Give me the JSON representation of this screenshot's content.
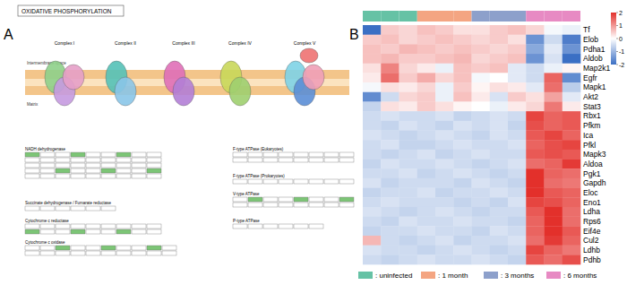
{
  "panel_a": {
    "panel_label": "A",
    "title": "OXIDATIVE PHOSPHORYLATION",
    "complexes": [
      "Complex I",
      "Complex II",
      "Complex III",
      "Complex IV",
      "Complex V"
    ],
    "regions": [
      "Intermembrane space",
      "Matrix"
    ],
    "tables": [
      "NADH dehydrogenase",
      "Succinate dehydrogenase / Fumarate reductase",
      "Cytochrome c reductase",
      "Cytochrome c oxidase",
      "F-type ATPase (Eukaryotes)",
      "F-type ATPase (Prokaryotes)",
      "V-type ATPase",
      "P-type ATPase"
    ]
  },
  "chart_data": {
    "type": "heatmap",
    "panel_label": "B",
    "rows": [
      "Tf",
      "Elob",
      "Pdha1",
      "Aldob",
      "Map2k1",
      "Egfr",
      "Mapk1",
      "Akt2",
      "Stat3",
      "Rbx1",
      "Pfkm",
      "Ica",
      "Pfkl",
      "Mapk3",
      "Aldoa",
      "Pgk1",
      "Gapdh",
      "Eloc",
      "Eno1",
      "Ldha",
      "Rps6",
      "Eif4e",
      "Cul2",
      "Ldhb",
      "Pdhb"
    ],
    "series": [
      {
        "name": ": uninfected",
        "color": "#66c2a5"
      },
      {
        "name": ": 1 month",
        "color": "#f4a582"
      },
      {
        "name": ": 3 months",
        "color": "#8da0cb"
      },
      {
        "name": ": 6 months",
        "color": "#e78ac3"
      }
    ],
    "column_group": [
      0,
      0,
      0,
      1,
      1,
      1,
      2,
      2,
      2,
      3,
      3,
      3
    ],
    "values": [
      [
        -2,
        0.5,
        0.4,
        0.6,
        0.5,
        0.3,
        0.3,
        0.5,
        0.6,
        0.4,
        -0.1,
        -0.2
      ],
      [
        0.5,
        0.6,
        0.4,
        0.5,
        0.6,
        0.5,
        0.4,
        0.5,
        0.3,
        -1.5,
        -0.5,
        -1.8
      ],
      [
        0.6,
        0.5,
        0.7,
        0.6,
        0.5,
        0.6,
        0.5,
        0.4,
        0.5,
        -1.2,
        -0.3,
        -1.5
      ],
      [
        0.6,
        0.7,
        0.5,
        0.5,
        0.6,
        0.7,
        0.4,
        0.5,
        0.6,
        -1.5,
        -0.4,
        -2
      ],
      [
        0.3,
        1.2,
        0.4,
        0.2,
        -0.2,
        0.6,
        0.5,
        0.6,
        -0.3,
        -0.5,
        -0.2,
        0.1
      ],
      [
        0.2,
        1.4,
        0.5,
        0.8,
        0.4,
        0.6,
        -0.1,
        0,
        -0.3,
        -0.5,
        1.5,
        -1.6
      ],
      [
        -0.1,
        0.3,
        0.2,
        0.4,
        -0.2,
        0.5,
        0.1,
        0.3,
        0.2,
        -0.3,
        1.4,
        -0.7
      ],
      [
        -1.6,
        -0.5,
        0.4,
        0.5,
        -0.2,
        0.6,
        0.2,
        -0.4,
        0.5,
        0.3,
        0.9,
        -0.3
      ],
      [
        -0.6,
        0.3,
        0.2,
        0.5,
        0.3,
        0.1,
        0,
        -0.2,
        0.2,
        0.4,
        1.3,
        0.2
      ],
      [
        -0.5,
        -0.4,
        -0.5,
        -0.5,
        -0.4,
        -0.6,
        -0.5,
        -0.4,
        -0.5,
        1.8,
        1.5,
        1.6
      ],
      [
        -0.5,
        -0.6,
        -0.4,
        -0.5,
        -0.6,
        -0.4,
        -0.5,
        -0.4,
        -0.6,
        1.7,
        1.5,
        1.6
      ],
      [
        -0.4,
        -0.5,
        -0.6,
        -0.5,
        -0.4,
        -0.5,
        -0.6,
        -0.4,
        -0.5,
        1.6,
        1.8,
        1.5
      ],
      [
        -0.5,
        -0.4,
        -0.6,
        -0.6,
        -0.5,
        -0.4,
        -0.5,
        -0.5,
        -0.4,
        1.5,
        1.7,
        1.8
      ],
      [
        -0.5,
        -0.6,
        -0.5,
        -0.4,
        -0.6,
        -0.5,
        -0.4,
        -0.5,
        -0.5,
        1.6,
        1.7,
        1.6
      ],
      [
        -0.6,
        -0.4,
        -0.5,
        -0.5,
        -0.4,
        -0.5,
        -0.6,
        -0.5,
        -0.4,
        1.4,
        1.5,
        1.9
      ],
      [
        -0.5,
        -0.5,
        -0.4,
        -0.6,
        -0.5,
        -0.4,
        -0.5,
        -0.6,
        -0.5,
        2,
        1.5,
        1.4
      ],
      [
        -0.4,
        -0.6,
        -0.5,
        -0.5,
        -0.5,
        -0.6,
        -0.4,
        -0.5,
        -0.6,
        2,
        1.4,
        1.3
      ],
      [
        -0.6,
        -0.5,
        -0.5,
        -0.4,
        -0.6,
        -0.5,
        -0.5,
        -0.4,
        -0.5,
        2,
        1.6,
        1.5
      ],
      [
        -0.5,
        -0.4,
        -0.5,
        -0.5,
        -0.5,
        -0.6,
        -0.5,
        -0.6,
        -0.4,
        1.8,
        1.7,
        1.5
      ],
      [
        -0.4,
        -0.5,
        -0.6,
        -0.5,
        -0.4,
        -0.5,
        -0.6,
        -0.5,
        -0.5,
        1.6,
        2,
        1.4
      ],
      [
        -0.5,
        -0.6,
        -0.4,
        -0.5,
        -0.5,
        -0.4,
        -0.5,
        -0.5,
        -0.6,
        1.5,
        2,
        1.4
      ],
      [
        -0.6,
        -0.5,
        -0.5,
        -0.4,
        -0.5,
        -0.5,
        -0.6,
        -0.4,
        -0.5,
        1.5,
        2,
        1.6
      ],
      [
        0.7,
        -0.5,
        -0.6,
        -0.5,
        -0.4,
        -0.6,
        -0.5,
        -0.5,
        -0.4,
        1.4,
        1.9,
        1.5
      ],
      [
        -0.4,
        -0.5,
        -0.5,
        -0.6,
        -0.5,
        -0.4,
        -0.5,
        -0.6,
        -0.5,
        1.8,
        1.5,
        1.3
      ],
      [
        -0.5,
        -0.6,
        -0.5,
        -0.4,
        -0.5,
        -0.5,
        -0.4,
        -0.5,
        -0.6,
        1.6,
        1.4,
        1.7
      ]
    ],
    "colorbar_lim": [
      -2,
      2
    ],
    "colorbar_ticks": [
      2,
      1,
      0,
      -1,
      -2
    ],
    "colorscale": [
      "#3b6fc4",
      "#ffffff",
      "#e3302b"
    ]
  }
}
